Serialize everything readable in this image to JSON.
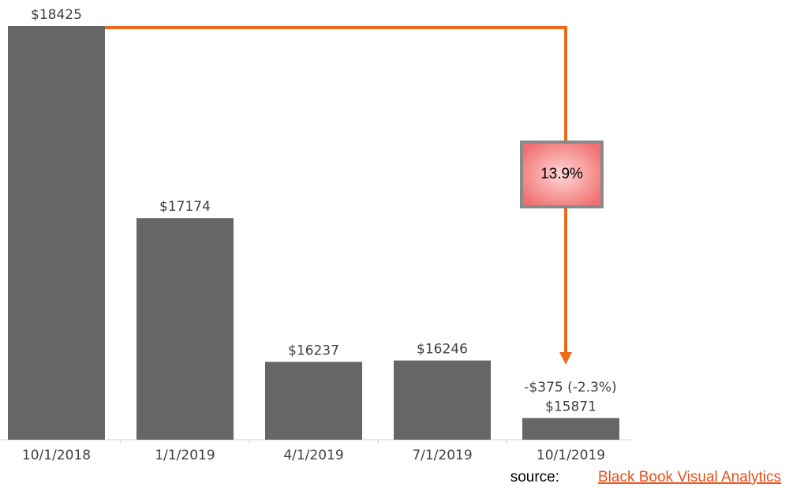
{
  "chart_data": {
    "type": "bar",
    "categories": [
      "10/1/2018",
      "1/1/2019",
      "4/1/2019",
      "7/1/2019",
      "10/1/2019"
    ],
    "values": [
      18425,
      17174,
      16237,
      16246,
      15871
    ],
    "value_labels": [
      "$18425",
      "$17174",
      "$16237",
      "$16246",
      "$15871"
    ],
    "color": "#666666",
    "ylim": [
      15730,
      18425
    ],
    "annotations": {
      "last_change": "-$375 (-2.3%)",
      "total_drop": "13.9%"
    },
    "source": {
      "prefix": "source:",
      "link": "Black Book Visual Analytics"
    }
  }
}
